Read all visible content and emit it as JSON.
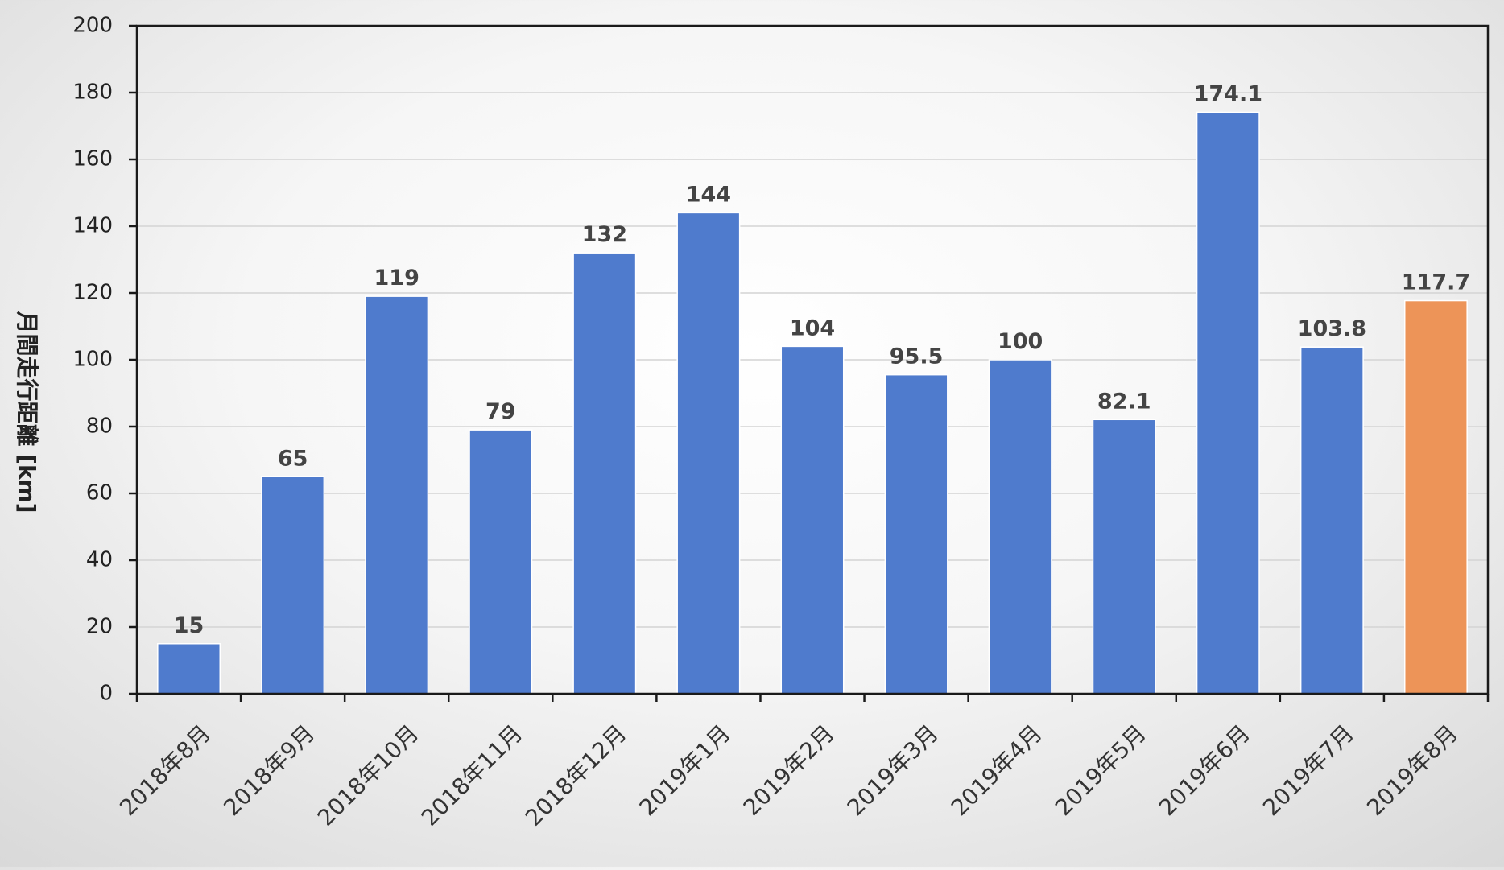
{
  "chart_data": {
    "type": "bar",
    "title": "",
    "xlabel": "",
    "ylabel": "月間走行距離 [km]",
    "ylim": [
      0,
      200
    ],
    "yticks": [
      0,
      20,
      40,
      60,
      80,
      100,
      120,
      140,
      160,
      180,
      200
    ],
    "grid": true,
    "legend": "none",
    "categories": [
      "2018年8月",
      "2018年9月",
      "2018年10月",
      "2018年11月",
      "2018年12月",
      "2019年1月",
      "2019年2月",
      "2019年3月",
      "2019年4月",
      "2019年5月",
      "2019年6月",
      "2019年7月",
      "2019年8月"
    ],
    "values": [
      15,
      65,
      119,
      79,
      132,
      144,
      104,
      95.5,
      100,
      82.1,
      174.1,
      103.8,
      117.7
    ],
    "value_labels": [
      "15",
      "65",
      "119",
      "79",
      "132",
      "144",
      "104",
      "95.5",
      "100",
      "82.1",
      "174.1",
      "103.8",
      "117.7"
    ],
    "colors": {
      "bar": "#4f7bcd",
      "highlight": "#ed9458",
      "highlight_index": 12
    }
  }
}
